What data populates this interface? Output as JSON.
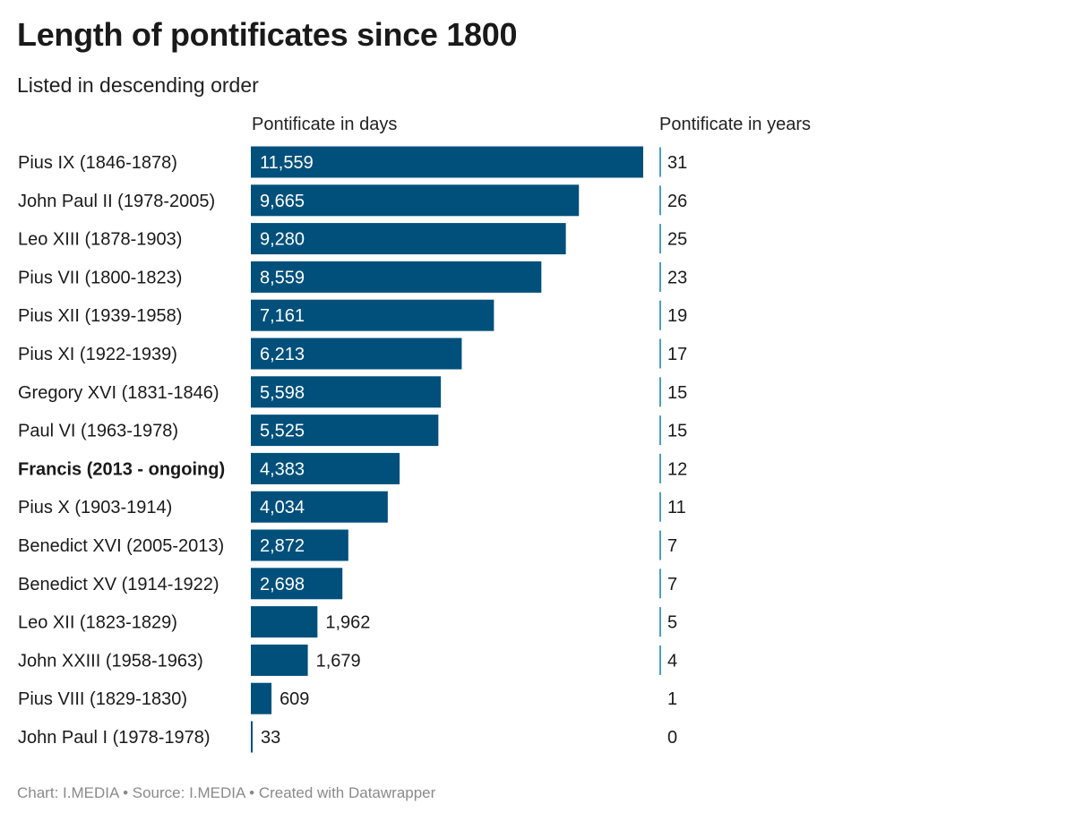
{
  "title": "Length of pontificates since 1800",
  "subtitle": "Listed in descending order",
  "columns": {
    "days_header": "Pontificate in days",
    "years_header": "Pontificate in years"
  },
  "footer": "Chart: I.MEDIA • Source: I.MEDIA • Created with Datawrapper",
  "colors": {
    "bar": "#00507b",
    "year_rule": "#4a9ec2",
    "text": "#1a1a1a",
    "footer": "#8a8a8a"
  },
  "chart_data": {
    "type": "bar",
    "orientation": "horizontal",
    "title": "Length of pontificates since 1800",
    "subtitle": "Listed in descending order",
    "xlabel": "Pontificate in days",
    "ylabel": "",
    "xlim": [
      0,
      11559
    ],
    "grid": false,
    "categories": [
      "Pius IX (1846-1878)",
      "John Paul II (1978-2005)",
      "Leo XIII (1878-1903)",
      "Pius VII (1800-1823)",
      "Pius XII (1939-1958)",
      "Pius XI (1922-1939)",
      "Gregory XVI (1831-1846)",
      "Paul VI (1963-1978)",
      "Francis (2013 - ongoing)",
      "Pius X (1903-1914)",
      "Benedict XVI (2005-2013)",
      "Benedict XV (1914-1922)",
      "Leo XII (1823-1829)",
      "John XXIII (1958-1963)",
      "Pius VIII (1829-1830)",
      "John Paul I (1978-1978)"
    ],
    "values": [
      11559,
      9665,
      9280,
      8559,
      7161,
      6213,
      5598,
      5525,
      4383,
      4034,
      2872,
      2698,
      1962,
      1679,
      609,
      33
    ],
    "value_labels": [
      "11,559",
      "9,665",
      "9,280",
      "8,559",
      "7,161",
      "6,213",
      "5,598",
      "5,525",
      "4,383",
      "4,034",
      "2,872",
      "2,698",
      "1,962",
      "1,679",
      "609",
      "33"
    ],
    "years": [
      31,
      26,
      25,
      23,
      19,
      17,
      15,
      15,
      12,
      11,
      7,
      7,
      5,
      4,
      1,
      0
    ],
    "highlighted": [
      "Francis (2013 - ongoing)"
    ]
  }
}
